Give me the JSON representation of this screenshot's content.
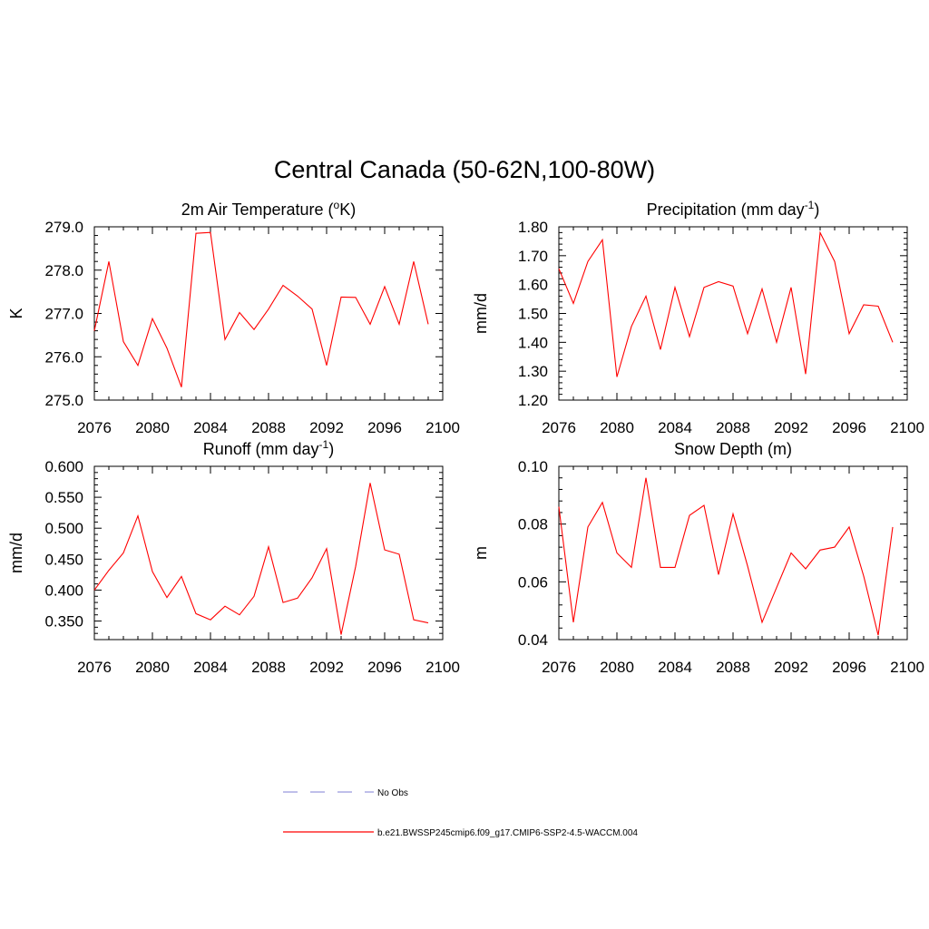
{
  "title": "Central Canada (50-62N,100-80W)",
  "colors": {
    "model_line": "#ff0000",
    "obs_line": "#9999dd",
    "axes": "#000000"
  },
  "legend": {
    "items": [
      {
        "label": "No Obs",
        "style": "dashed",
        "color": "#9999dd"
      },
      {
        "label": "b.e21.BWSSP245cmip6.f09_g17.CMIP6-SSP2-4.5-WACCM.004",
        "style": "solid",
        "color": "#ff0000"
      }
    ]
  },
  "chart_data": [
    {
      "type": "line",
      "title_main": "2m Air Temperature (",
      "title_sup": "o",
      "title_rest": "K)",
      "ylabel": "K",
      "xlim": [
        2076,
        2100
      ],
      "ylim": [
        275.0,
        279.0
      ],
      "xticks": [
        2076,
        2080,
        2084,
        2088,
        2092,
        2096,
        2100
      ],
      "yticks": [
        275.0,
        276.0,
        277.0,
        278.0,
        279.0
      ],
      "ytick_labels": [
        "275.0",
        "276.0",
        "277.0",
        "278.0",
        "279.0"
      ],
      "series": [
        {
          "name": "b.e21.BWSSP245cmip6.f09_g17.CMIP6-SSP2-4.5-WACCM.004",
          "x": [
            2076,
            2077,
            2078,
            2079,
            2080,
            2081,
            2082,
            2083,
            2084,
            2085,
            2086,
            2087,
            2088,
            2089,
            2090,
            2091,
            2092,
            2093,
            2094,
            2095,
            2096,
            2097,
            2098,
            2099
          ],
          "y": [
            276.6,
            278.2,
            276.35,
            275.8,
            276.88,
            276.2,
            275.3,
            278.85,
            278.87,
            276.4,
            277.02,
            276.63,
            277.1,
            277.65,
            277.4,
            277.1,
            275.8,
            277.38,
            277.37,
            276.75,
            277.62,
            276.75,
            278.2,
            276.75
          ]
        }
      ]
    },
    {
      "type": "line",
      "title_main": "Precipitation (mm day",
      "title_sup": "-1",
      "title_rest": ")",
      "ylabel": "mm/d",
      "xlim": [
        2076,
        2100
      ],
      "ylim": [
        1.2,
        1.8
      ],
      "xticks": [
        2076,
        2080,
        2084,
        2088,
        2092,
        2096,
        2100
      ],
      "yticks": [
        1.2,
        1.3,
        1.4,
        1.5,
        1.6,
        1.7,
        1.8
      ],
      "ytick_labels": [
        "1.20",
        "1.30",
        "1.40",
        "1.50",
        "1.60",
        "1.70",
        "1.80"
      ],
      "series": [
        {
          "name": "b.e21.BWSSP245cmip6.f09_g17.CMIP6-SSP2-4.5-WACCM.004",
          "x": [
            2076,
            2077,
            2078,
            2079,
            2080,
            2081,
            2082,
            2083,
            2084,
            2085,
            2086,
            2087,
            2088,
            2089,
            2090,
            2091,
            2092,
            2093,
            2094,
            2095,
            2096,
            2097,
            2098,
            2099
          ],
          "y": [
            1.655,
            1.535,
            1.68,
            1.755,
            1.28,
            1.455,
            1.56,
            1.375,
            1.59,
            1.42,
            1.59,
            1.61,
            1.595,
            1.43,
            1.585,
            1.4,
            1.59,
            1.29,
            1.78,
            1.68,
            1.43,
            1.53,
            1.525,
            1.4
          ]
        }
      ]
    },
    {
      "type": "line",
      "title_main": "Runoff (mm day",
      "title_sup": "-1",
      "title_rest": ")",
      "ylabel": "mm/d",
      "xlim": [
        2076,
        2100
      ],
      "ylim": [
        0.32,
        0.6
      ],
      "xticks": [
        2076,
        2080,
        2084,
        2088,
        2092,
        2096,
        2100
      ],
      "yticks": [
        0.35,
        0.4,
        0.45,
        0.5,
        0.55,
        0.6
      ],
      "ytick_labels": [
        "0.350",
        "0.400",
        "0.450",
        "0.500",
        "0.550",
        "0.600"
      ],
      "series": [
        {
          "name": "b.e21.BWSSP245cmip6.f09_g17.CMIP6-SSP2-4.5-WACCM.004",
          "x": [
            2076,
            2077,
            2078,
            2079,
            2080,
            2081,
            2082,
            2083,
            2084,
            2085,
            2086,
            2087,
            2088,
            2089,
            2090,
            2091,
            2092,
            2093,
            2094,
            2095,
            2096,
            2097,
            2098,
            2099
          ],
          "y": [
            0.4,
            0.432,
            0.46,
            0.52,
            0.43,
            0.388,
            0.422,
            0.362,
            0.352,
            0.374,
            0.36,
            0.39,
            0.47,
            0.38,
            0.387,
            0.42,
            0.467,
            0.328,
            0.438,
            0.573,
            0.465,
            0.458,
            0.352,
            0.347
          ]
        }
      ]
    },
    {
      "type": "line",
      "title_main": "Snow Depth (m)",
      "title_sup": "",
      "title_rest": "",
      "ylabel": "m",
      "xlim": [
        2076,
        2100
      ],
      "ylim": [
        0.04,
        0.1
      ],
      "xticks": [
        2076,
        2080,
        2084,
        2088,
        2092,
        2096,
        2100
      ],
      "yticks": [
        0.04,
        0.06,
        0.08,
        0.1
      ],
      "ytick_labels": [
        "0.04",
        "0.06",
        "0.08",
        "0.10"
      ],
      "series": [
        {
          "name": "b.e21.BWSSP245cmip6.f09_g17.CMIP6-SSP2-4.5-WACCM.004",
          "x": [
            2076,
            2077,
            2078,
            2079,
            2080,
            2081,
            2082,
            2083,
            2084,
            2085,
            2086,
            2087,
            2088,
            2089,
            2090,
            2091,
            2092,
            2093,
            2094,
            2095,
            2096,
            2097,
            2098,
            2099
          ],
          "y": [
            0.086,
            0.046,
            0.079,
            0.0875,
            0.07,
            0.065,
            0.096,
            0.065,
            0.065,
            0.083,
            0.0865,
            0.0625,
            0.0835,
            0.0655,
            0.046,
            0.058,
            0.07,
            0.0645,
            0.071,
            0.072,
            0.079,
            0.062,
            0.0415,
            0.079
          ]
        }
      ]
    }
  ]
}
